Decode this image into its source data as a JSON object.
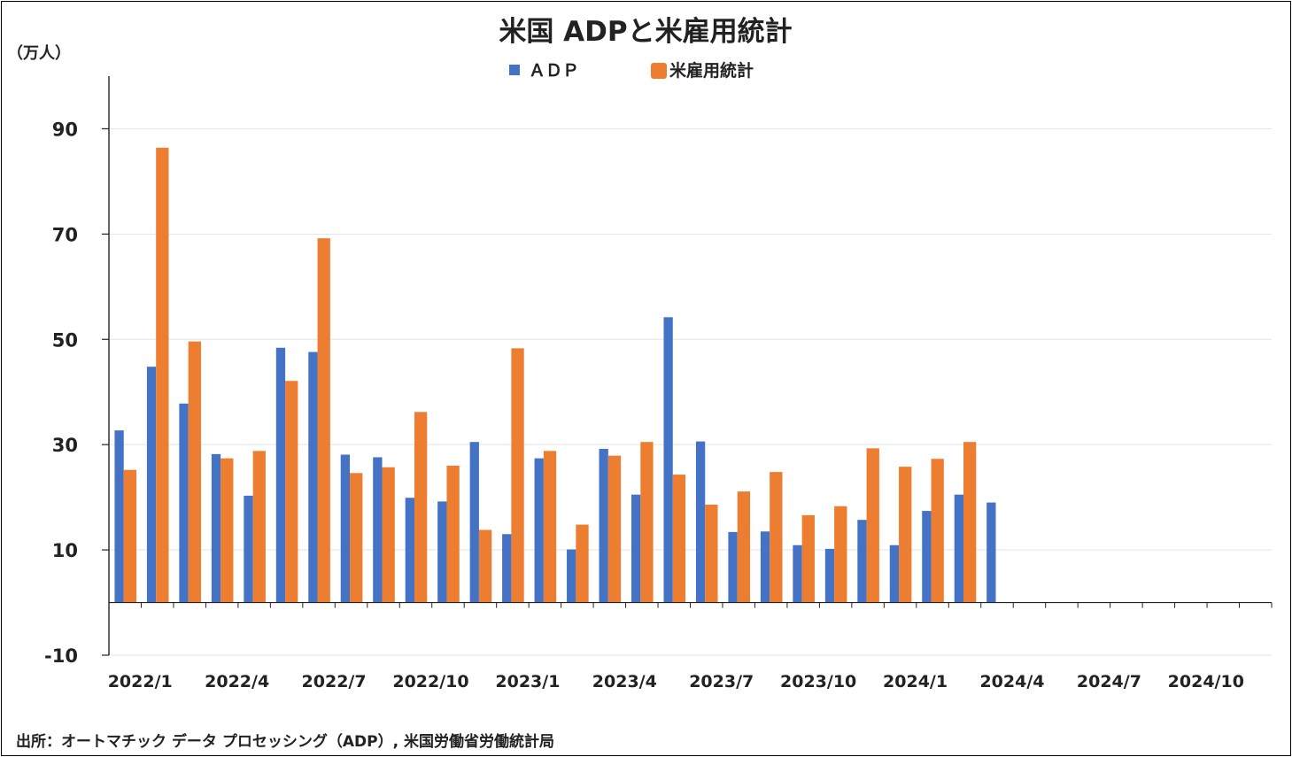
{
  "chart_data": {
    "type": "bar",
    "title": "米国 ADPと米雇用統計",
    "ylabel": "（万人）",
    "source": "出所：オートマチック データ プロセッシング（ADP）, 米国労働省労働統計局",
    "ylim": [
      -10,
      100
    ],
    "yticks": [
      {
        "value": 90,
        "label": "90",
        "color": "#222222"
      },
      {
        "value": 70,
        "label": "70",
        "color": "#222222"
      },
      {
        "value": 50,
        "label": "50",
        "color": "#222222"
      },
      {
        "value": 30,
        "label": "30",
        "color": "#222222"
      },
      {
        "value": 10,
        "label": "10",
        "color": "#222222"
      },
      {
        "value": -10,
        "label": "-10",
        "color": "#e00000"
      }
    ],
    "grid": true,
    "legend_position": "top-center",
    "categories": [
      "2022/1",
      "2022/2",
      "2022/3",
      "2022/4",
      "2022/5",
      "2022/6",
      "2022/7",
      "2022/8",
      "2022/9",
      "2022/10",
      "2022/11",
      "2022/12",
      "2023/1",
      "2023/2",
      "2023/3",
      "2023/4",
      "2023/5",
      "2023/6",
      "2023/7",
      "2023/8",
      "2023/9",
      "2023/10",
      "2023/11",
      "2023/12",
      "2024/1",
      "2024/2",
      "2024/3",
      "2024/4",
      "2024/5",
      "2024/6",
      "2024/7",
      "2024/8",
      "2024/9",
      "2024/10",
      "2024/11",
      "2024/12"
    ],
    "x_tick_labels": [
      {
        "index": 0,
        "label": "2022/1"
      },
      {
        "index": 3,
        "label": "2022/4"
      },
      {
        "index": 6,
        "label": "2022/7"
      },
      {
        "index": 9,
        "label": "2022/10"
      },
      {
        "index": 12,
        "label": "2023/1"
      },
      {
        "index": 15,
        "label": "2023/4"
      },
      {
        "index": 18,
        "label": "2023/7"
      },
      {
        "index": 21,
        "label": "2023/10"
      },
      {
        "index": 24,
        "label": "2024/1"
      },
      {
        "index": 27,
        "label": "2024/4"
      },
      {
        "index": 30,
        "label": "2024/7"
      },
      {
        "index": 33,
        "label": "2024/10"
      }
    ],
    "series": [
      {
        "name": "ＡＤＰ",
        "color": "#4472c4",
        "values": [
          32.7,
          44.8,
          37.8,
          28.2,
          20.3,
          48.4,
          47.6,
          28.1,
          27.6,
          19.9,
          19.2,
          30.5,
          13.0,
          27.4,
          10.1,
          29.2,
          20.5,
          54.2,
          30.6,
          13.4,
          13.5,
          10.9,
          10.2,
          15.7,
          10.9,
          17.4,
          20.5,
          19.0,
          null,
          null,
          null,
          null,
          null,
          null,
          null,
          null
        ]
      },
      {
        "name": "米雇用統計",
        "color": "#ed7d31",
        "values": [
          25.2,
          86.4,
          49.6,
          27.4,
          28.8,
          42.1,
          69.2,
          24.6,
          25.7,
          36.2,
          26.0,
          13.8,
          48.3,
          28.8,
          14.8,
          27.9,
          30.5,
          24.3,
          18.6,
          21.1,
          24.8,
          16.6,
          18.3,
          29.3,
          25.8,
          27.3,
          30.5,
          null,
          null,
          null,
          null,
          null,
          null,
          null,
          null,
          null
        ]
      }
    ]
  }
}
